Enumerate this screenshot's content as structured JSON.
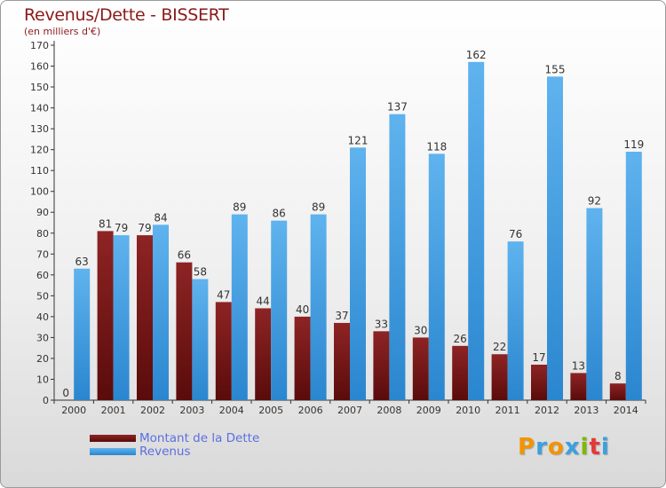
{
  "title": "Revenus/Dette - BISSERT",
  "subtitle": "(en milliers d'€)",
  "logo": {
    "text": "Proxiti",
    "colors": [
      "#f29400",
      "#3aa0e0",
      "#f29400",
      "#3aa0e0",
      "#7fb800",
      "#e53935",
      "#3aa0e0"
    ]
  },
  "colors": {
    "dette": "#7a1414",
    "revenus": "#3d9be2",
    "label_text": "#5b6fe0",
    "title_text": "#8b1a1a"
  },
  "chart_data": {
    "type": "bar",
    "title": "Revenus/Dette - BISSERT",
    "subtitle": "(en milliers d'€)",
    "categories": [
      "2000",
      "2001",
      "2002",
      "2003",
      "2004",
      "2005",
      "2006",
      "2007",
      "2008",
      "2009",
      "2010",
      "2011",
      "2012",
      "2013",
      "2014"
    ],
    "series": [
      {
        "name": "Montant de la Dette",
        "color": "#7a1414",
        "values": [
          0,
          81,
          79,
          66,
          47,
          44,
          40,
          37,
          33,
          30,
          26,
          22,
          17,
          13,
          8
        ]
      },
      {
        "name": "Revenus",
        "color": "#3d9be2",
        "values": [
          63,
          79,
          84,
          58,
          89,
          86,
          89,
          121,
          137,
          118,
          162,
          76,
          155,
          92,
          119
        ]
      }
    ],
    "ylim": [
      0,
      170
    ],
    "yticks": [
      0,
      10,
      20,
      30,
      40,
      50,
      60,
      70,
      80,
      90,
      100,
      110,
      120,
      130,
      140,
      150,
      160,
      170
    ],
    "grid": false,
    "legend": "bottom-left"
  }
}
